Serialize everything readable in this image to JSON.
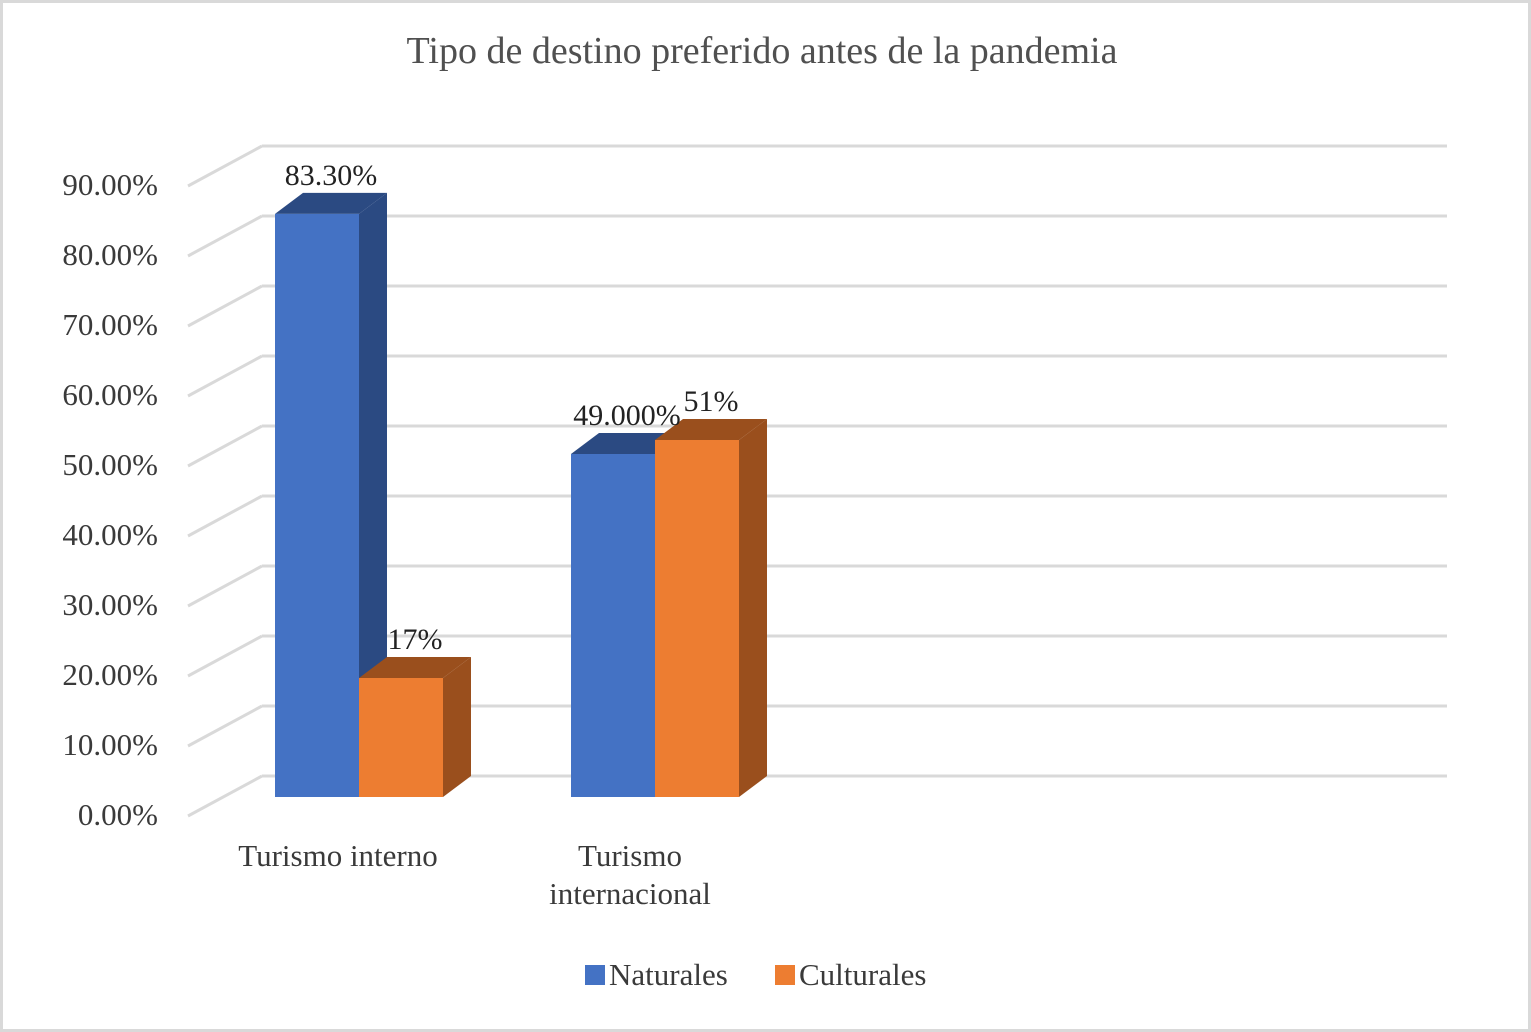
{
  "chart_data": {
    "type": "bar",
    "style": "3d-clustered-column",
    "title": "Tipo de destino preferido antes de la pandemia",
    "xlabel": "",
    "ylabel": "",
    "ylim": [
      0,
      0.9
    ],
    "yticks": [
      0,
      0.1,
      0.2,
      0.3,
      0.4,
      0.5,
      0.6,
      0.7,
      0.8,
      0.9
    ],
    "ytick_labels": [
      "0.00%",
      "10.00%",
      "20.00%",
      "30.00%",
      "40.00%",
      "50.00%",
      "60.00%",
      "70.00%",
      "80.00%",
      "90.00%"
    ],
    "categories": [
      [
        "Turismo interno"
      ],
      [
        "Turismo",
        "internacional"
      ]
    ],
    "series": [
      {
        "name": "Naturales",
        "color": "#4472c4",
        "side_color": "#2b4a82",
        "values": [
          0.833,
          0.49
        ],
        "labels": [
          "83.30%",
          "49.000%"
        ]
      },
      {
        "name": "Culturales",
        "color": "#ed7d31",
        "side_color": "#9a4f1d",
        "values": [
          0.17,
          0.51
        ],
        "labels": [
          "17%",
          "51%"
        ]
      }
    ],
    "legend_position": "bottom",
    "grid": true
  }
}
